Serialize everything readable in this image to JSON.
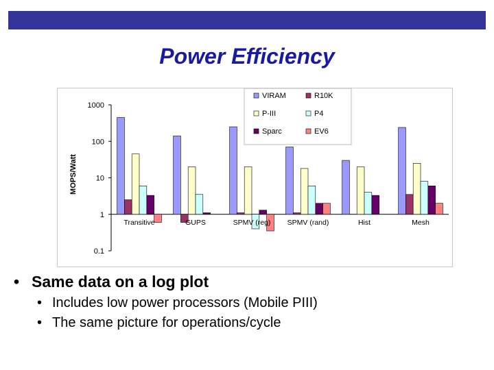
{
  "slide": {
    "title": "Power Efficiency",
    "bullet_main": "Same data on a log plot",
    "sub_bullets": [
      "Includes low power processors (Mobile PIII)",
      "The same picture for operations/cycle"
    ],
    "bullet_glyph": "•",
    "banner_color": "#33339a"
  },
  "chart_data": {
    "type": "bar",
    "scale": "log",
    "title": "",
    "ylabel": "MOPS/Watt",
    "xlabel": "",
    "ylim": [
      0.1,
      1000
    ],
    "yticks": [
      {
        "value": 1000,
        "label": "1000"
      },
      {
        "value": 100,
        "label": "100"
      },
      {
        "value": 10,
        "label": "10"
      },
      {
        "value": 1,
        "label": "1"
      },
      {
        "value": 0.1,
        "label": "0.1"
      }
    ],
    "categories": [
      "Transitive",
      "GUPS",
      "SPMV (reg)",
      "SPMV (rand)",
      "Hist",
      "Mesh"
    ],
    "series": [
      {
        "name": "VIRAM",
        "color": "#9999ff",
        "values": [
          450,
          140,
          250,
          70,
          30,
          240
        ]
      },
      {
        "name": "R10K",
        "color": "#993366",
        "values": [
          2.5,
          0.6,
          1.1,
          1.1,
          null,
          3.5
        ]
      },
      {
        "name": "P-III",
        "color": "#ffffcc",
        "values": [
          45,
          20,
          20,
          18,
          20,
          25
        ]
      },
      {
        "name": "P4",
        "color": "#ccffff",
        "values": [
          6,
          3.5,
          0.4,
          6,
          4,
          8
        ]
      },
      {
        "name": "Sparc",
        "color": "#660066",
        "values": [
          3.3,
          1.1,
          1.3,
          2,
          3.3,
          6
        ]
      },
      {
        "name": "EV6",
        "color": "#ff8080",
        "values": [
          0.6,
          1,
          0.35,
          2,
          null,
          2
        ]
      }
    ],
    "legend": "top-center",
    "grid": false
  }
}
